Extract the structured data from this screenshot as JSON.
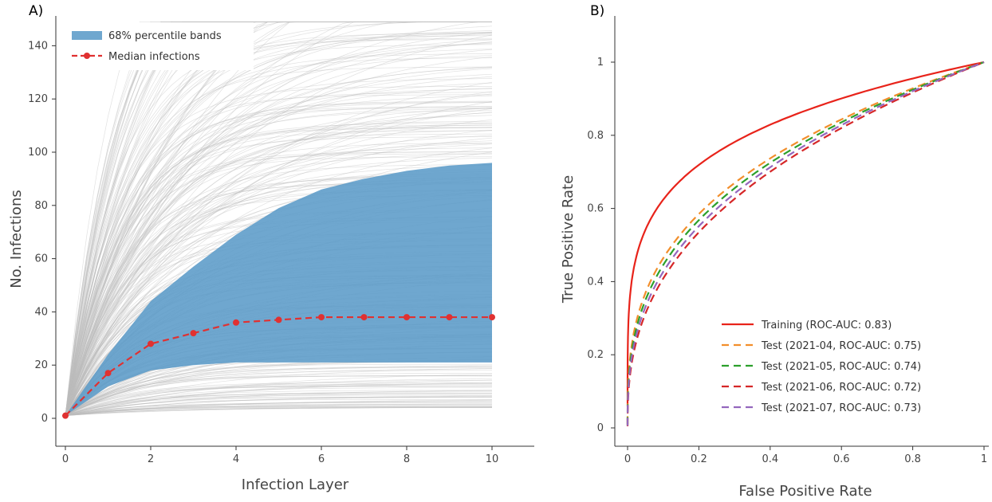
{
  "panels": {
    "a_label": "A)",
    "b_label": "B)"
  },
  "chart_data": [
    {
      "type": "line",
      "panel": "A)",
      "xlabel": "Infection Layer",
      "ylabel": "No. Infections",
      "xlim": [
        0,
        11
      ],
      "ylim": [
        -10,
        150
      ],
      "xticks": [
        0,
        2,
        4,
        6,
        8,
        10
      ],
      "yticks": [
        0,
        20,
        40,
        60,
        80,
        100,
        120,
        140
      ],
      "grid": false,
      "legend_placement": "top-left",
      "background_trajectories": {
        "description_color": "#bdbdbd"
      },
      "band": {
        "name": "68% percentile bands",
        "color": "#5b9bc8",
        "x": [
          0,
          1,
          2,
          3,
          4,
          5,
          6,
          7,
          8,
          9,
          10
        ],
        "lower": [
          1,
          12,
          18,
          20,
          21,
          21,
          21,
          21,
          21,
          21,
          21
        ],
        "upper": [
          1,
          24,
          44,
          57,
          69,
          79,
          86,
          90,
          93,
          95,
          96
        ]
      },
      "series": [
        {
          "name": "Median infections",
          "color": "#e03131",
          "style": "dashed-markers",
          "x": [
            0,
            1,
            2,
            3,
            4,
            5,
            6,
            7,
            8,
            9,
            10
          ],
          "y": [
            1,
            17,
            28,
            32,
            36,
            37,
            38,
            38,
            38,
            38,
            38
          ]
        }
      ]
    },
    {
      "type": "line",
      "panel": "B)",
      "xlabel": "False Positive Rate",
      "ylabel": "True Positive Rate",
      "xlim": [
        0,
        1
      ],
      "ylim": [
        -0.05,
        1.05
      ],
      "xticks": [
        "0",
        "0.2",
        "0.4",
        "0.6",
        "0.8",
        "1"
      ],
      "yticks": [
        "0",
        "0.2",
        "0.4",
        "0.6",
        "0.8",
        "1"
      ],
      "grid": false,
      "legend_placement": "bottom-right",
      "series": [
        {
          "name": "Training (ROC-AUC: 0.83)",
          "color": "#e8231a",
          "style": "solid",
          "auc": 0.83
        },
        {
          "name": "Test (2021-04, ROC-AUC: 0.75)",
          "color": "#f28e2b",
          "style": "dashed",
          "auc": 0.75
        },
        {
          "name": "Test (2021-05, ROC-AUC: 0.74)",
          "color": "#2ca02c",
          "style": "dashed",
          "auc": 0.74
        },
        {
          "name": "Test (2021-06, ROC-AUC: 0.72)",
          "color": "#d62728",
          "style": "dashed",
          "auc": 0.72
        },
        {
          "name": "Test (2021-07, ROC-AUC: 0.73)",
          "color": "#9467bd",
          "style": "dashed",
          "auc": 0.73
        }
      ]
    }
  ]
}
